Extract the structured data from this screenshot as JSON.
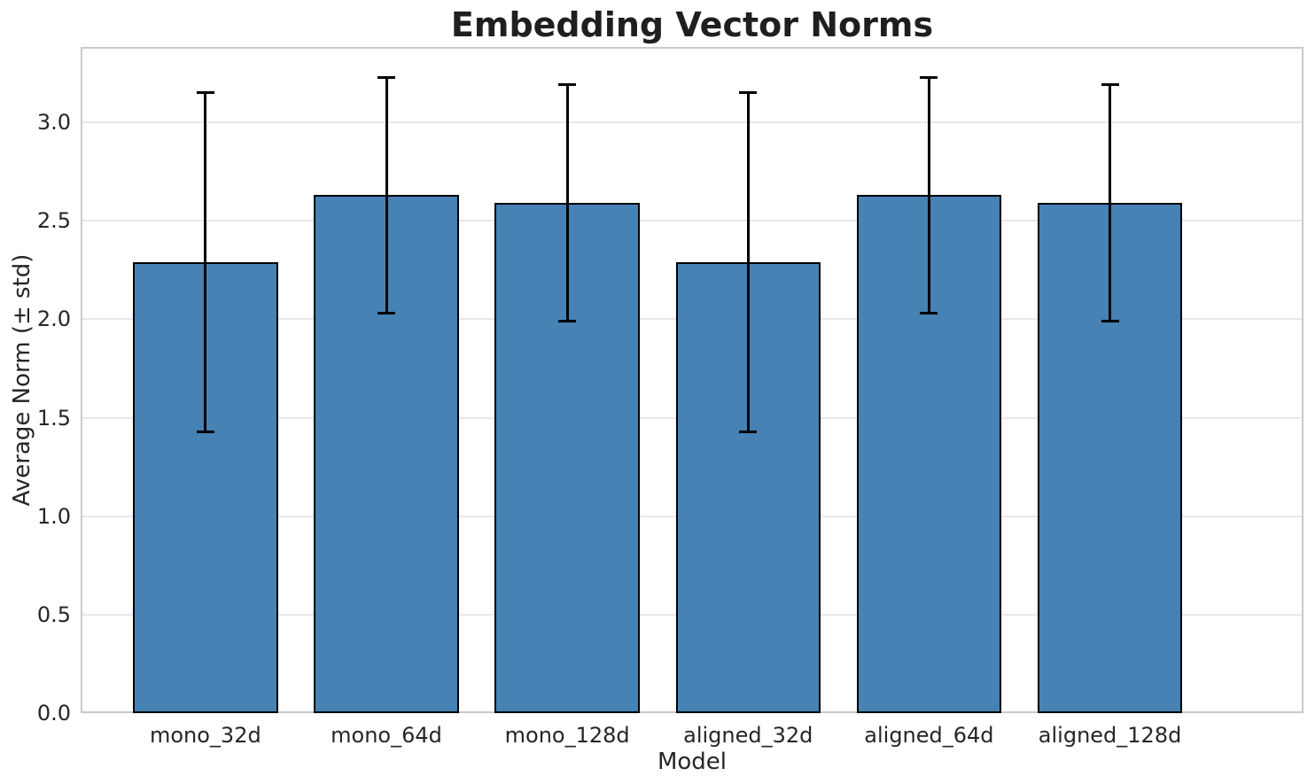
{
  "chart_data": {
    "type": "bar",
    "title": "Embedding Vector Norms",
    "xlabel": "Model",
    "ylabel": "Average Norm (± std)",
    "categories": [
      "mono_32d",
      "mono_64d",
      "mono_128d",
      "aligned_32d",
      "aligned_64d",
      "aligned_128d"
    ],
    "series": [
      {
        "name": "Average Norm",
        "values": [
          2.29,
          2.63,
          2.59,
          2.29,
          2.63,
          2.59
        ],
        "errors": [
          0.86,
          0.6,
          0.6,
          0.86,
          0.6,
          0.6
        ]
      }
    ],
    "yticks": [
      0.0,
      0.5,
      1.0,
      1.5,
      2.0,
      2.5,
      3.0
    ],
    "ylim": [
      0,
      3.383
    ],
    "grid": true,
    "legend": "none",
    "colors": {
      "bar_fill": "#4682B4",
      "bar_edge": "#000000",
      "error_bar": "#000000",
      "gridline": "#e8e8e8",
      "frame": "#c9c9c9",
      "text": "#262626",
      "title_text": "#1f1f1f",
      "background": "#ffffff"
    }
  }
}
